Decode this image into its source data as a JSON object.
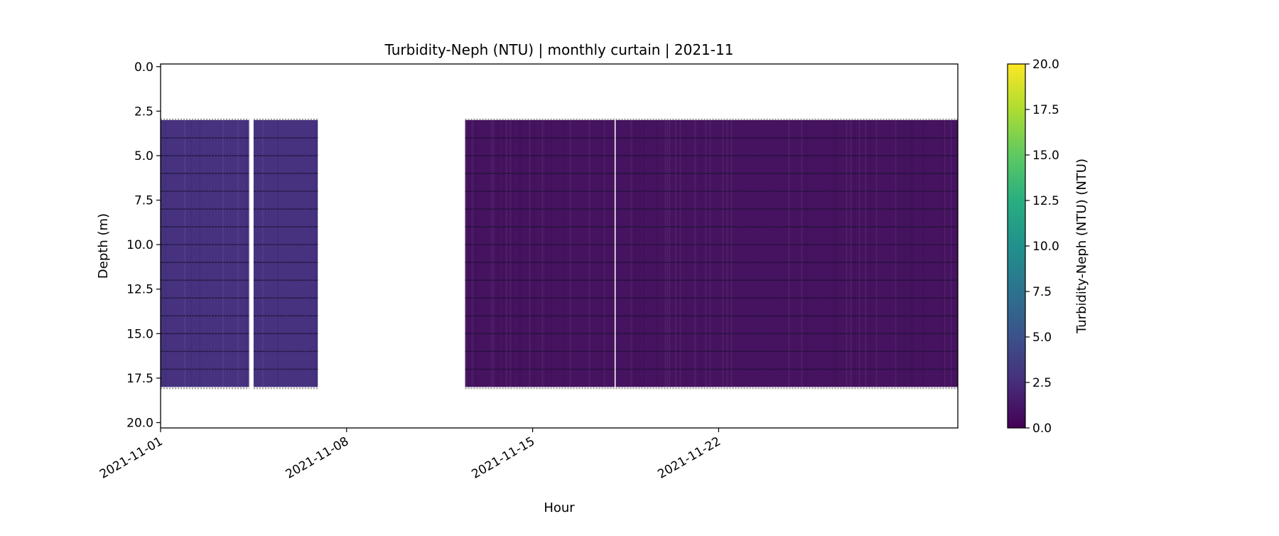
{
  "chart_data": {
    "type": "heatmap",
    "title": "Turbidity-Neph (NTU) | monthly curtain | 2021-11",
    "xlabel": "Hour",
    "ylabel": "Depth (m)",
    "xlim": [
      "2021-11-01",
      "2021-12-01"
    ],
    "ylim": [
      20.3,
      -0.15
    ],
    "y_inverted": true,
    "xticks": [
      "2021-11-01",
      "2021-11-08",
      "2021-11-15",
      "2021-11-22"
    ],
    "yticks": [
      "0.0",
      "2.5",
      "5.0",
      "7.5",
      "10.0",
      "12.5",
      "15.0",
      "17.5",
      "20.0"
    ],
    "colorbar": {
      "label": "Turbidity-Neph (NTU) (NTU)",
      "colormap": "viridis",
      "range": [
        0,
        20
      ],
      "ticks": [
        "0.0",
        "2.5",
        "5.0",
        "7.5",
        "10.0",
        "12.5",
        "15.0",
        "17.5",
        "20.0"
      ]
    },
    "segments": [
      {
        "start": "2021-11-01T00:00",
        "end": "2021-11-04T08:00",
        "depth_range": [
          3.0,
          18.0
        ],
        "typical_value": 2.5,
        "color": "#46327e"
      },
      {
        "start": "2021-11-04T12:00",
        "end": "2021-11-06T22:00",
        "depth_range": [
          3.0,
          18.0
        ],
        "typical_value": 2.5,
        "color": "#46327e"
      },
      {
        "start": "2021-11-12T11:00",
        "end": "2021-11-18T02:00",
        "depth_range": [
          3.0,
          18.0
        ],
        "typical_value": 0.6,
        "color": "#45135f"
      },
      {
        "start": "2021-11-18T03:00",
        "end": "2021-12-01T00:00",
        "depth_range": [
          3.0,
          18.0
        ],
        "typical_value": 0.6,
        "color": "#45135f"
      }
    ],
    "sensor_depths_m": [
      4,
      5,
      6,
      7,
      8,
      9,
      10,
      11,
      12,
      13,
      14,
      15,
      16,
      17
    ],
    "grid": false
  }
}
